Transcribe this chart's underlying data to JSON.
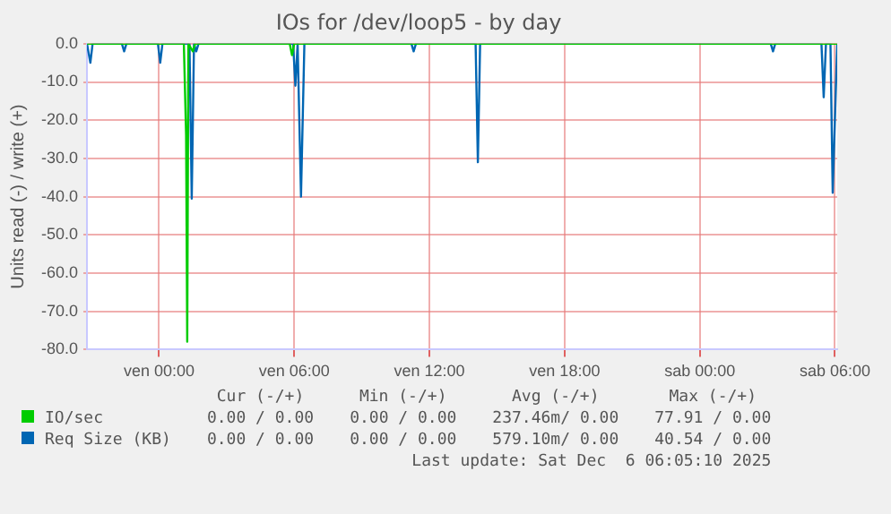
{
  "chart_data": {
    "type": "line",
    "title": "IOs for /dev/loop5 - by day",
    "ylabel": "Units read (-) / write (+)",
    "xlim": [
      "2025-12-04T20:48",
      "2025-12-06T06:06"
    ],
    "xticks": [
      {
        "value": "2025-12-05T00:00",
        "label": "ven 00:00"
      },
      {
        "value": "2025-12-05T06:00",
        "label": "ven 06:00"
      },
      {
        "value": "2025-12-05T12:00",
        "label": "ven 12:00"
      },
      {
        "value": "2025-12-05T18:00",
        "label": "ven 18:00"
      },
      {
        "value": "2025-12-06T00:00",
        "label": "sab 00:00"
      },
      {
        "value": "2025-12-06T06:00",
        "label": "sab 06:00"
      }
    ],
    "ylim": [
      -80,
      0
    ],
    "yticks": [
      {
        "value": 0,
        "label": "0.0"
      },
      {
        "value": -10,
        "label": "-10.0"
      },
      {
        "value": -20,
        "label": "-20.0"
      },
      {
        "value": -30,
        "label": "-30.0"
      },
      {
        "value": -40,
        "label": "-40.0"
      },
      {
        "value": -50,
        "label": "-50.0"
      },
      {
        "value": -60,
        "label": "-60.0"
      },
      {
        "value": -70,
        "label": "-70.0"
      },
      {
        "value": -80,
        "label": "-80.0"
      }
    ],
    "grid": true,
    "legend": "bottom",
    "marker": "none",
    "line_style": "solid",
    "series": [
      {
        "name": "IO/sec",
        "color": "#00cc00",
        "x": [
          "2025-12-04T20:48",
          "2025-12-05T01:06",
          "2025-12-05T01:12",
          "2025-12-05T01:15",
          "2025-12-05T01:18",
          "2025-12-05T01:30",
          "2025-12-05T01:36",
          "2025-12-05T01:42",
          "2025-12-05T05:48",
          "2025-12-05T05:54",
          "2025-12-05T06:00",
          "2025-12-05T06:06",
          "2025-12-06T06:06"
        ],
        "values": [
          0,
          0,
          -24,
          -77.9,
          0,
          -2,
          0,
          0,
          0,
          -3,
          0,
          0,
          0
        ]
      },
      {
        "name": "Req Size (KB)",
        "color": "#0066b3",
        "x": [
          "2025-12-04T20:48",
          "2025-12-04T20:57",
          "2025-12-04T21:03",
          "2025-12-04T22:21",
          "2025-12-04T22:27",
          "2025-12-04T22:33",
          "2025-12-04T23:57",
          "2025-12-05T00:03",
          "2025-12-05T00:09",
          "2025-12-05T01:21",
          "2025-12-05T01:27",
          "2025-12-05T01:33",
          "2025-12-05T01:39",
          "2025-12-05T01:45",
          "2025-12-05T05:57",
          "2025-12-05T06:03",
          "2025-12-05T06:09",
          "2025-12-05T06:18",
          "2025-12-05T06:27",
          "2025-12-05T11:12",
          "2025-12-05T11:18",
          "2025-12-05T11:24",
          "2025-12-05T14:03",
          "2025-12-05T14:09",
          "2025-12-05T14:15",
          "2025-12-06T03:09",
          "2025-12-06T03:15",
          "2025-12-06T03:21",
          "2025-12-06T05:24",
          "2025-12-06T05:30",
          "2025-12-06T05:36",
          "2025-12-06T05:48",
          "2025-12-06T05:54",
          "2025-12-06T06:06"
        ],
        "values": [
          0,
          -5,
          0,
          0,
          -2,
          0,
          0,
          -5,
          0,
          0,
          -40.5,
          0,
          -2,
          0,
          0,
          -11,
          0,
          -40,
          0,
          0,
          -2,
          0,
          0,
          -31,
          0,
          0,
          -2,
          0,
          0,
          -14,
          0,
          0,
          -39,
          0
        ]
      }
    ],
    "annotations": [
      "Cur (-/+)",
      "Min (-/+)",
      "Avg (-/+)",
      "Max (-/+)",
      "0.00 / 0.00",
      "0.00 / 0.00",
      "237.46m/ 0.00",
      "77.91 / 0.00",
      "0.00 / 0.00",
      "0.00 / 0.00",
      "579.10m/ 0.00",
      "40.54 / 0.00",
      "Last update: Sat Dec  6 06:05:10 2025"
    ]
  }
}
